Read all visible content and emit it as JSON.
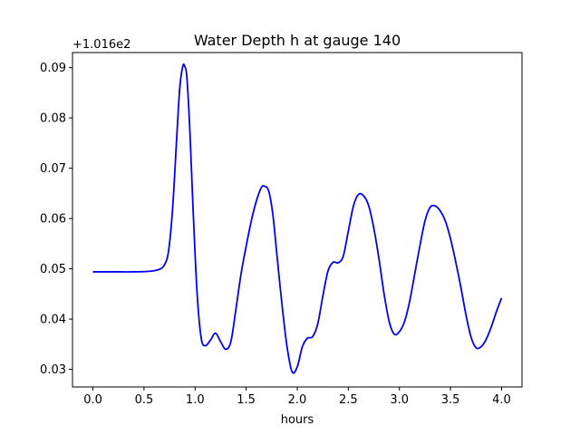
{
  "chart_data": {
    "type": "line",
    "title": "Water Depth h at gauge 140",
    "xlabel": "hours",
    "ylabel": "",
    "offset_text": "+1.016e2",
    "xlim": [
      -0.2,
      4.2
    ],
    "ylim": [
      0.0265,
      0.093
    ],
    "xticks": [
      0.0,
      0.5,
      1.0,
      1.5,
      2.0,
      2.5,
      3.0,
      3.5,
      4.0
    ],
    "xtick_labels": [
      "0.0",
      "0.5",
      "1.0",
      "1.5",
      "2.0",
      "2.5",
      "3.0",
      "3.5",
      "4.0"
    ],
    "yticks": [
      0.03,
      0.04,
      0.05,
      0.06,
      0.07,
      0.08,
      0.09
    ],
    "ytick_labels": [
      "0.03",
      "0.04",
      "0.05",
      "0.06",
      "0.07",
      "0.08",
      "0.09"
    ],
    "grid": false,
    "series": [
      {
        "color": "#0000ff",
        "x": [
          0.0,
          0.2,
          0.4,
          0.55,
          0.65,
          0.7,
          0.74,
          0.78,
          0.82,
          0.85,
          0.88,
          0.9,
          0.92,
          0.95,
          0.98,
          1.02,
          1.06,
          1.1,
          1.15,
          1.2,
          1.25,
          1.3,
          1.35,
          1.4,
          1.45,
          1.5,
          1.55,
          1.6,
          1.65,
          1.68,
          1.72,
          1.76,
          1.8,
          1.85,
          1.9,
          1.95,
          2.0,
          2.05,
          2.1,
          2.15,
          2.2,
          2.25,
          2.3,
          2.35,
          2.4,
          2.45,
          2.5,
          2.55,
          2.6,
          2.65,
          2.7,
          2.75,
          2.8,
          2.85,
          2.9,
          2.95,
          3.0,
          3.05,
          3.1,
          3.15,
          3.2,
          3.25,
          3.3,
          3.35,
          3.4,
          3.45,
          3.5,
          3.55,
          3.6,
          3.65,
          3.7,
          3.75,
          3.8,
          3.85,
          3.9,
          3.95,
          4.0
        ],
        "y": [
          0.0494,
          0.0494,
          0.0494,
          0.0495,
          0.0499,
          0.0508,
          0.0535,
          0.062,
          0.076,
          0.086,
          0.0903,
          0.0902,
          0.088,
          0.077,
          0.062,
          0.045,
          0.0362,
          0.0347,
          0.0358,
          0.0372,
          0.0355,
          0.034,
          0.0355,
          0.042,
          0.049,
          0.0545,
          0.0595,
          0.0635,
          0.0662,
          0.0664,
          0.0655,
          0.061,
          0.053,
          0.043,
          0.0345,
          0.0295,
          0.0305,
          0.0345,
          0.0362,
          0.0365,
          0.039,
          0.0445,
          0.0495,
          0.0513,
          0.0512,
          0.0525,
          0.0575,
          0.0625,
          0.0648,
          0.0645,
          0.0625,
          0.058,
          0.052,
          0.045,
          0.0395,
          0.037,
          0.0375,
          0.0395,
          0.0435,
          0.049,
          0.0545,
          0.0595,
          0.0622,
          0.0625,
          0.0615,
          0.0595,
          0.056,
          0.0515,
          0.0465,
          0.041,
          0.0365,
          0.0343,
          0.0345,
          0.036,
          0.0385,
          0.0415,
          0.0442
        ]
      }
    ]
  }
}
